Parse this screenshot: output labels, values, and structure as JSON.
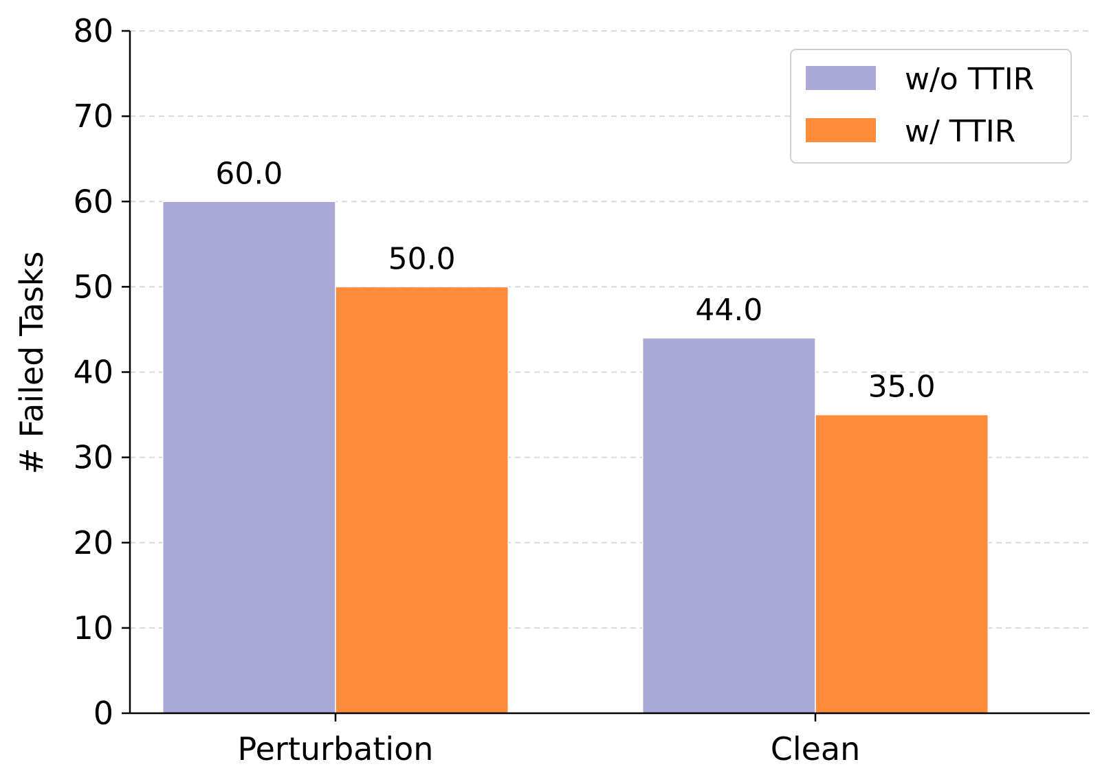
{
  "chart_data": {
    "type": "bar",
    "title": "",
    "xlabel": "",
    "ylabel": "# Failed Tasks",
    "categories": [
      "Perturbation",
      "Clean"
    ],
    "series": [
      {
        "name": "w/o TTIR",
        "values": [
          60.0,
          44.0
        ],
        "color": "#a9a8d6",
        "labels": [
          "60.0",
          "44.0"
        ]
      },
      {
        "name": "w/ TTIR",
        "values": [
          50.0,
          35.0
        ],
        "color": "#ff8c3b",
        "labels": [
          "50.0",
          "35.0"
        ]
      }
    ],
    "ylim": [
      0,
      80
    ],
    "yticks": [
      "0",
      "10",
      "20",
      "30",
      "40",
      "50",
      "60",
      "70",
      "80"
    ],
    "grid": "horizontal dashed",
    "legend_position": "top-right"
  }
}
